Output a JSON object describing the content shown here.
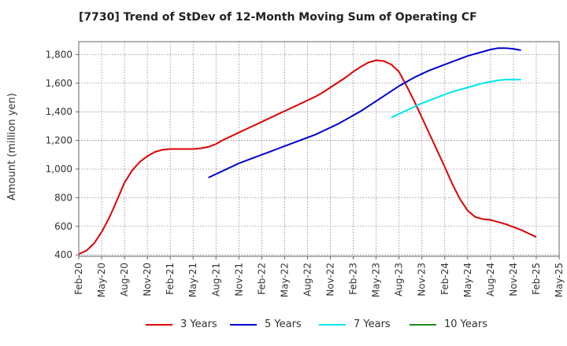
{
  "title": "[7730]  Trend of StDev of 12-Month Moving Sum of Operating CF",
  "chart_data": {
    "type": "line",
    "title": "[7730]  Trend of StDev of 12-Month Moving Sum of Operating CF",
    "ylabel": "Amount (million yen)",
    "xlabel": "",
    "ylim": [
      390,
      1890
    ],
    "y_ticks": [
      400,
      600,
      800,
      1000,
      1200,
      1400,
      1600,
      1800
    ],
    "y_tick_labels": [
      "400",
      "600",
      "800",
      "1,000",
      "1,200",
      "1,400",
      "1,600",
      "1,800"
    ],
    "x_tick_labels": [
      "Feb-20",
      "May-20",
      "Aug-20",
      "Nov-20",
      "Feb-21",
      "May-21",
      "Aug-21",
      "Nov-21",
      "Feb-22",
      "May-22",
      "Aug-22",
      "Nov-22",
      "Feb-23",
      "May-23",
      "Aug-23",
      "Nov-23",
      "Feb-24",
      "May-24",
      "Aug-24",
      "Nov-24",
      "Feb-25",
      "May-25"
    ],
    "grid": true,
    "legend_position": "bottom",
    "series": [
      {
        "name": "3 Years",
        "color": "#dd0000",
        "start": "Feb-20",
        "values": [
          405,
          430,
          480,
          560,
          660,
          780,
          905,
          990,
          1050,
          1090,
          1120,
          1135,
          1140,
          1140,
          1140,
          1140,
          1145,
          1155,
          1175,
          1205,
          1230,
          1255,
          1280,
          1305,
          1330,
          1355,
          1380,
          1405,
          1430,
          1455,
          1480,
          1505,
          1535,
          1570,
          1605,
          1640,
          1680,
          1715,
          1745,
          1760,
          1755,
          1730,
          1680,
          1580,
          1475,
          1360,
          1245,
          1130,
          1015,
          895,
          790,
          710,
          665,
          650,
          645,
          630,
          615,
          595,
          575,
          550,
          525
        ]
      },
      {
        "name": "5 Years",
        "color": "#0000cc",
        "start": "Jul-21",
        "values": [
          940,
          965,
          990,
          1015,
          1040,
          1060,
          1080,
          1100,
          1120,
          1140,
          1160,
          1180,
          1200,
          1220,
          1240,
          1265,
          1290,
          1315,
          1345,
          1375,
          1405,
          1440,
          1475,
          1510,
          1545,
          1580,
          1610,
          1640,
          1665,
          1690,
          1710,
          1730,
          1750,
          1770,
          1790,
          1805,
          1820,
          1835,
          1845,
          1845,
          1840,
          1830
        ]
      },
      {
        "name": "7 Years",
        "color": "#00e5ee",
        "start": "Jul-23",
        "values": [
          1360,
          1385,
          1410,
          1435,
          1460,
          1480,
          1500,
          1520,
          1540,
          1555,
          1570,
          1585,
          1600,
          1610,
          1620,
          1625,
          1625,
          1625
        ]
      },
      {
        "name": "10 Years",
        "color": "#228b22",
        "start": "",
        "values": []
      }
    ]
  }
}
